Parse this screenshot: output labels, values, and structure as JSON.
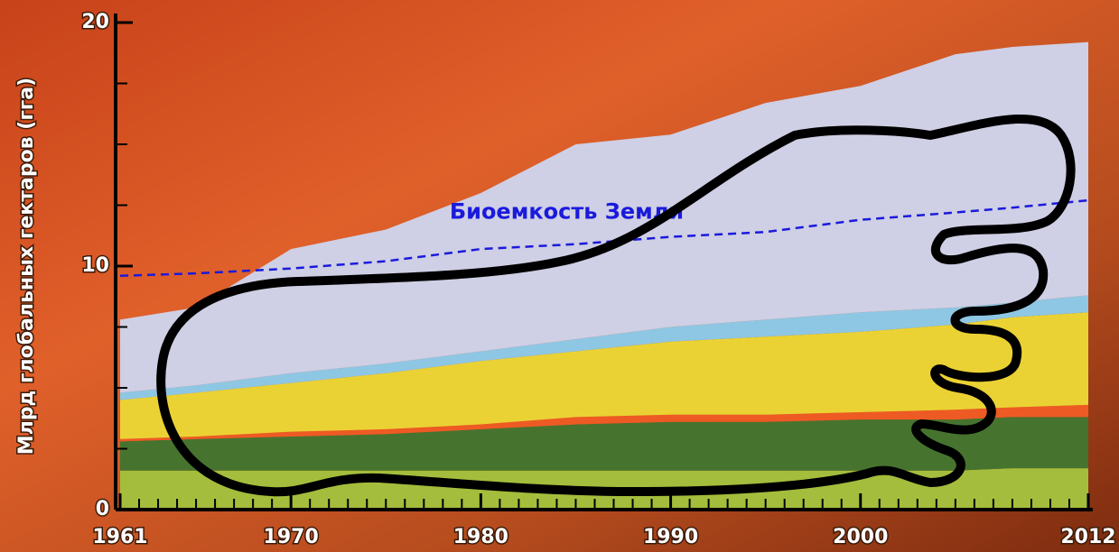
{
  "chart_data": {
    "type": "stacked_area",
    "ylabel": "Млрд глобальных гектаров (гга)",
    "x": [
      1961,
      1965,
      1970,
      1975,
      1980,
      1985,
      1990,
      1995,
      2000,
      2005,
      2008,
      2012
    ],
    "xlim": [
      1961,
      2012
    ],
    "xticks": [
      1961,
      1970,
      1980,
      1990,
      2000,
      2012
    ],
    "ylim": [
      0,
      20
    ],
    "yticks": [
      0,
      10,
      20
    ],
    "series": [
      {
        "color": "#a4bd3c",
        "values": [
          1.6,
          1.6,
          1.6,
          1.6,
          1.6,
          1.6,
          1.6,
          1.6,
          1.6,
          1.6,
          1.7,
          1.7
        ]
      },
      {
        "color": "#46742f",
        "values": [
          1.2,
          1.3,
          1.4,
          1.5,
          1.7,
          1.9,
          2.0,
          2.0,
          2.1,
          2.1,
          2.1,
          2.1
        ]
      },
      {
        "color": "#ee5a24",
        "values": [
          0.1,
          0.1,
          0.2,
          0.2,
          0.2,
          0.3,
          0.3,
          0.3,
          0.3,
          0.4,
          0.4,
          0.5
        ]
      },
      {
        "color": "#ebd234",
        "values": [
          1.6,
          1.8,
          2.0,
          2.3,
          2.6,
          2.7,
          3.0,
          3.2,
          3.3,
          3.5,
          3.7,
          3.8
        ]
      },
      {
        "color": "#8ec7e3",
        "values": [
          0.3,
          0.3,
          0.4,
          0.4,
          0.4,
          0.5,
          0.6,
          0.7,
          0.8,
          0.7,
          0.6,
          0.7
        ]
      },
      {
        "color": "#cfcfe5",
        "values": [
          3.0,
          3.2,
          5.1,
          5.5,
          6.5,
          8.0,
          7.9,
          8.9,
          9.3,
          10.4,
          10.5,
          10.4
        ]
      }
    ],
    "lines": [
      {
        "name": "Биоемкость Земли",
        "color": "#1a1adc",
        "style": "dashed",
        "values": [
          9.6,
          9.7,
          9.9,
          10.2,
          10.7,
          10.9,
          11.2,
          11.4,
          11.9,
          12.2,
          12.4,
          12.7
        ]
      }
    ]
  }
}
